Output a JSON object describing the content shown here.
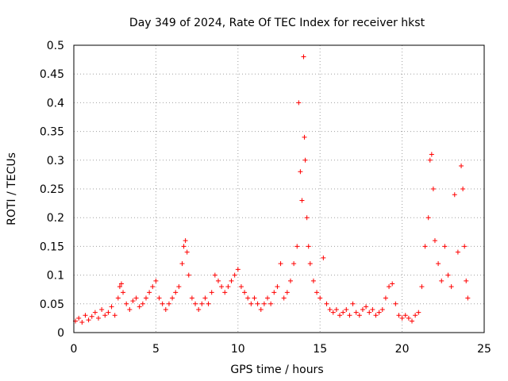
{
  "chart_data": {
    "type": "scatter",
    "title": "Day 349 of 2024, Rate Of TEC Index for receiver hkst",
    "xlabel": "GPS time / hours",
    "ylabel": "ROTI / TECUs",
    "xlim": [
      0,
      25
    ],
    "ylim": [
      0,
      0.5
    ],
    "x_ticks": [
      "0",
      "5",
      "10",
      "15",
      "20",
      "25"
    ],
    "y_ticks": [
      "0",
      "0.05",
      "0.1",
      "0.15",
      "0.2",
      "0.25",
      "0.3",
      "0.35",
      "0.4",
      "0.45",
      "0.5"
    ],
    "grid": true,
    "marker": "+",
    "color": "#ff0000",
    "series": [
      {
        "points": [
          [
            0.1,
            0.02
          ],
          [
            0.3,
            0.025
          ],
          [
            0.5,
            0.018
          ],
          [
            0.7,
            0.03
          ],
          [
            0.9,
            0.022
          ],
          [
            1.1,
            0.028
          ],
          [
            1.3,
            0.035
          ],
          [
            1.5,
            0.025
          ],
          [
            1.7,
            0.04
          ],
          [
            1.9,
            0.03
          ],
          [
            2.1,
            0.035
          ],
          [
            2.3,
            0.045
          ],
          [
            2.5,
            0.03
          ],
          [
            2.7,
            0.06
          ],
          [
            2.8,
            0.08
          ],
          [
            2.9,
            0.085
          ],
          [
            3.0,
            0.07
          ],
          [
            3.2,
            0.05
          ],
          [
            3.4,
            0.04
          ],
          [
            3.6,
            0.055
          ],
          [
            3.8,
            0.06
          ],
          [
            4.0,
            0.045
          ],
          [
            4.2,
            0.05
          ],
          [
            4.4,
            0.06
          ],
          [
            4.6,
            0.07
          ],
          [
            4.8,
            0.08
          ],
          [
            5.0,
            0.09
          ],
          [
            5.2,
            0.06
          ],
          [
            5.4,
            0.05
          ],
          [
            5.6,
            0.04
          ],
          [
            5.8,
            0.05
          ],
          [
            6.0,
            0.06
          ],
          [
            6.2,
            0.07
          ],
          [
            6.4,
            0.08
          ],
          [
            6.6,
            0.12
          ],
          [
            6.7,
            0.15
          ],
          [
            6.8,
            0.16
          ],
          [
            6.9,
            0.14
          ],
          [
            7.0,
            0.1
          ],
          [
            7.2,
            0.06
          ],
          [
            7.4,
            0.05
          ],
          [
            7.6,
            0.04
          ],
          [
            7.8,
            0.05
          ],
          [
            8.0,
            0.06
          ],
          [
            8.2,
            0.05
          ],
          [
            8.4,
            0.07
          ],
          [
            8.6,
            0.1
          ],
          [
            8.8,
            0.09
          ],
          [
            9.0,
            0.08
          ],
          [
            9.2,
            0.07
          ],
          [
            9.4,
            0.08
          ],
          [
            9.6,
            0.09
          ],
          [
            9.8,
            0.1
          ],
          [
            10.0,
            0.11
          ],
          [
            10.2,
            0.08
          ],
          [
            10.4,
            0.07
          ],
          [
            10.6,
            0.06
          ],
          [
            10.8,
            0.05
          ],
          [
            11.0,
            0.06
          ],
          [
            11.2,
            0.05
          ],
          [
            11.4,
            0.04
          ],
          [
            11.6,
            0.05
          ],
          [
            11.8,
            0.06
          ],
          [
            12.0,
            0.05
          ],
          [
            12.2,
            0.07
          ],
          [
            12.4,
            0.08
          ],
          [
            12.6,
            0.12
          ],
          [
            12.8,
            0.06
          ],
          [
            13.0,
            0.07
          ],
          [
            13.2,
            0.09
          ],
          [
            13.4,
            0.12
          ],
          [
            13.6,
            0.15
          ],
          [
            13.7,
            0.4
          ],
          [
            13.8,
            0.28
          ],
          [
            13.9,
            0.23
          ],
          [
            14.0,
            0.48
          ],
          [
            14.05,
            0.34
          ],
          [
            14.1,
            0.3
          ],
          [
            14.2,
            0.2
          ],
          [
            14.3,
            0.15
          ],
          [
            14.4,
            0.12
          ],
          [
            14.6,
            0.09
          ],
          [
            14.8,
            0.07
          ],
          [
            15.0,
            0.06
          ],
          [
            15.2,
            0.13
          ],
          [
            15.4,
            0.05
          ],
          [
            15.6,
            0.04
          ],
          [
            15.8,
            0.035
          ],
          [
            16.0,
            0.04
          ],
          [
            16.2,
            0.03
          ],
          [
            16.4,
            0.035
          ],
          [
            16.6,
            0.04
          ],
          [
            16.8,
            0.03
          ],
          [
            17.0,
            0.05
          ],
          [
            17.2,
            0.035
          ],
          [
            17.4,
            0.03
          ],
          [
            17.6,
            0.04
          ],
          [
            17.8,
            0.045
          ],
          [
            18.0,
            0.035
          ],
          [
            18.2,
            0.04
          ],
          [
            18.4,
            0.03
          ],
          [
            18.6,
            0.035
          ],
          [
            18.8,
            0.04
          ],
          [
            19.0,
            0.06
          ],
          [
            19.2,
            0.08
          ],
          [
            19.4,
            0.085
          ],
          [
            19.6,
            0.05
          ],
          [
            19.8,
            0.03
          ],
          [
            20.0,
            0.025
          ],
          [
            20.2,
            0.03
          ],
          [
            20.4,
            0.025
          ],
          [
            20.6,
            0.02
          ],
          [
            20.8,
            0.03
          ],
          [
            21.0,
            0.035
          ],
          [
            21.2,
            0.08
          ],
          [
            21.4,
            0.15
          ],
          [
            21.6,
            0.2
          ],
          [
            21.7,
            0.3
          ],
          [
            21.8,
            0.31
          ],
          [
            21.9,
            0.25
          ],
          [
            22.0,
            0.16
          ],
          [
            22.2,
            0.12
          ],
          [
            22.4,
            0.09
          ],
          [
            22.6,
            0.15
          ],
          [
            22.8,
            0.1
          ],
          [
            23.0,
            0.08
          ],
          [
            23.2,
            0.24
          ],
          [
            23.4,
            0.14
          ],
          [
            23.6,
            0.29
          ],
          [
            23.7,
            0.25
          ],
          [
            23.8,
            0.15
          ],
          [
            23.9,
            0.09
          ],
          [
            24.0,
            0.06
          ]
        ]
      }
    ]
  }
}
